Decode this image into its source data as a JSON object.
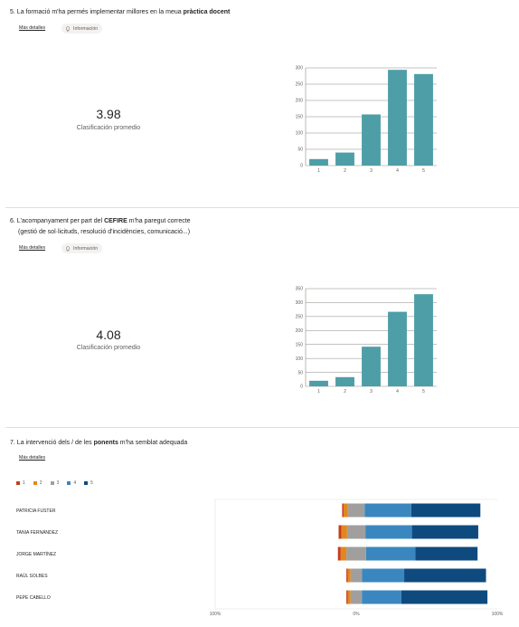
{
  "questions": [
    {
      "number": "5.",
      "title_plain": "La formació m'ha permés implementar millores en la meua ",
      "title_bold": "pràctica docent",
      "more_details": "Más detalles",
      "info_label": "Información",
      "average": "3.98",
      "average_label": "Clasificación promedio"
    },
    {
      "number": "6.",
      "title_plain": "L'acompanyament per part del ",
      "title_bold": "CEFIRE",
      "title_rest": " m'ha paregut correcte",
      "subtitle": "(gestió de sol·licituds, resolució d'incidències, comunicació...)",
      "more_details": "Más detalles",
      "info_label": "Información",
      "average": "4.08",
      "average_label": "Clasificación promedio"
    },
    {
      "number": "7.",
      "title_plain": "La intervenció dels / de les ",
      "title_bold": "ponents",
      "title_rest": " m'ha semblat adequada",
      "more_details": "Más detalles"
    }
  ],
  "colors": {
    "bar": "#4e9ea8",
    "level1": "#c43e1c",
    "level2": "#e3861e",
    "level3": "#a19f9d",
    "level4": "#3a87c0",
    "level5": "#0f4a7f"
  },
  "chart_data": [
    {
      "type": "bar",
      "categories": [
        "1",
        "2",
        "3",
        "4",
        "5"
      ],
      "values": [
        20,
        40,
        157,
        294,
        281
      ],
      "ylim": [
        0,
        300
      ],
      "yticks": [
        "0",
        "50",
        "100",
        "150",
        "200",
        "250",
        "300"
      ],
      "grid": true
    },
    {
      "type": "bar",
      "categories": [
        "1",
        "2",
        "3",
        "4",
        "5"
      ],
      "values": [
        20,
        33,
        142,
        267,
        330
      ],
      "ylim": [
        0,
        350
      ],
      "yticks": [
        "0",
        "50",
        "100",
        "150",
        "200",
        "250",
        "300",
        "350"
      ],
      "grid": true
    },
    {
      "type": "bar",
      "orientation": "horizontal-diverging",
      "legend": [
        "1",
        "2",
        "3",
        "4",
        "5"
      ],
      "categories": [
        "PATRICIA FUSTER",
        "TANIA FERNÁNDEZ",
        "JORGE MARTÍNEZ",
        "RAÚL SOLBES",
        "PEPE CABELLO"
      ],
      "series": [
        {
          "name": "1",
          "values": [
            1,
            2,
            2,
            1,
            1
          ]
        },
        {
          "name": "2",
          "values": [
            3,
            4,
            4,
            2,
            2
          ]
        },
        {
          "name": "3",
          "values": [
            12,
            13,
            14,
            8,
            8
          ]
        },
        {
          "name": "4",
          "values": [
            33,
            33,
            35,
            30,
            28
          ]
        },
        {
          "name": "5",
          "values": [
            49,
            47,
            44,
            58,
            61
          ]
        }
      ],
      "axis_labels": [
        "100%",
        "0%",
        "100%"
      ]
    }
  ]
}
